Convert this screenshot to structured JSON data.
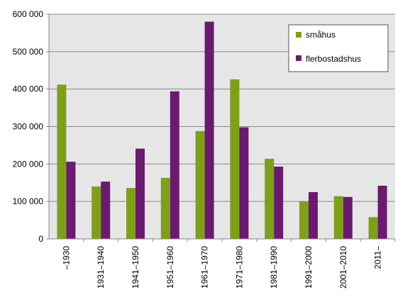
{
  "chart_data": {
    "type": "bar",
    "categories": [
      "–1930",
      "1931–1940",
      "1941–1950",
      "1951–1960",
      "1961–1970",
      "1971–1980",
      "1981–1990",
      "1991–2000",
      "2001–2010",
      "2011–"
    ],
    "series": [
      {
        "name": "småhus",
        "color": "#7f9f1a",
        "values": [
          412000,
          140000,
          136000,
          163000,
          288000,
          426000,
          214000,
          100000,
          114000,
          58000
        ]
      },
      {
        "name": "flerbostadshus",
        "color": "#6a1b6e",
        "values": [
          206000,
          153000,
          241000,
          394000,
          580000,
          298000,
          193000,
          125000,
          112000,
          142000
        ]
      }
    ],
    "ylim": [
      0,
      600000
    ],
    "yticks": [
      0,
      100000,
      200000,
      300000,
      400000,
      500000,
      600000
    ],
    "ytick_labels": [
      "0",
      "100 000",
      "200 000",
      "300 000",
      "400 000",
      "500 000",
      "600 000"
    ],
    "grid": true,
    "legend_position": "top-right",
    "plot_background": "#e6e6e6"
  }
}
